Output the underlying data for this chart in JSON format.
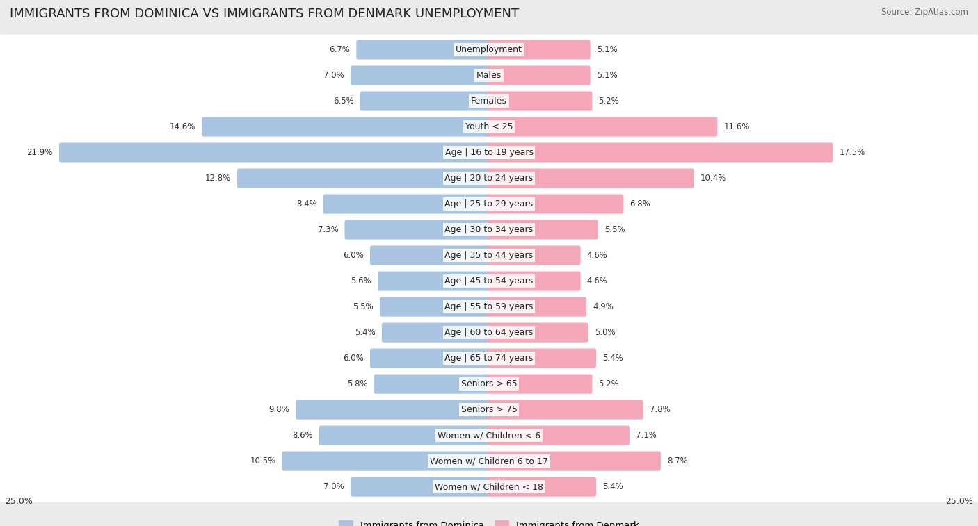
{
  "title": "IMMIGRANTS FROM DOMINICA VS IMMIGRANTS FROM DENMARK UNEMPLOYMENT",
  "source": "Source: ZipAtlas.com",
  "categories": [
    "Unemployment",
    "Males",
    "Females",
    "Youth < 25",
    "Age | 16 to 19 years",
    "Age | 20 to 24 years",
    "Age | 25 to 29 years",
    "Age | 30 to 34 years",
    "Age | 35 to 44 years",
    "Age | 45 to 54 years",
    "Age | 55 to 59 years",
    "Age | 60 to 64 years",
    "Age | 65 to 74 years",
    "Seniors > 65",
    "Seniors > 75",
    "Women w/ Children < 6",
    "Women w/ Children 6 to 17",
    "Women w/ Children < 18"
  ],
  "dominica_values": [
    6.7,
    7.0,
    6.5,
    14.6,
    21.9,
    12.8,
    8.4,
    7.3,
    6.0,
    5.6,
    5.5,
    5.4,
    6.0,
    5.8,
    9.8,
    8.6,
    10.5,
    7.0
  ],
  "denmark_values": [
    5.1,
    5.1,
    5.2,
    11.6,
    17.5,
    10.4,
    6.8,
    5.5,
    4.6,
    4.6,
    4.9,
    5.0,
    5.4,
    5.2,
    7.8,
    7.1,
    8.7,
    5.4
  ],
  "dominica_color": "#a8c4e0",
  "denmark_color": "#f4a7b9",
  "dominica_label": "Immigrants from Dominica",
  "denmark_label": "Immigrants from Denmark",
  "axis_max": 25.0,
  "background_color": "#ebebeb",
  "bar_background": "#ffffff",
  "title_fontsize": 13,
  "label_fontsize": 9,
  "value_fontsize": 8.5
}
